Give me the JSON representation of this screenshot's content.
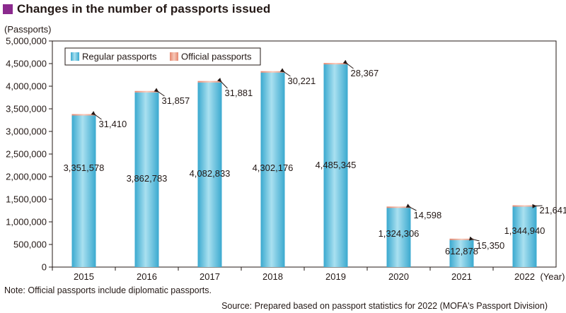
{
  "header": {
    "title": "Changes in the number of passports issued",
    "marker_color": "#8b2a8e"
  },
  "unit_label": "(Passports)",
  "note": "Note: Official passports include diplomatic passports.",
  "source": "Source: Prepared based on passport statistics for 2022 (MOFA's Passport Division)",
  "chart_data": {
    "type": "bar",
    "stacked": true,
    "categories": [
      "2015",
      "2016",
      "2017",
      "2018",
      "2019",
      "2020",
      "2021",
      "2022"
    ],
    "x_unit": "(Year)",
    "series": [
      {
        "name": "Regular passports",
        "values": [
          3351578,
          3862783,
          4082833,
          4302176,
          4485345,
          1324306,
          612878,
          1344940
        ],
        "labels": [
          "3,351,578",
          "3,862,783",
          "4,082,833",
          "4,302,176",
          "4,485,345",
          "1,324,306",
          "612,878",
          "1,344,940"
        ],
        "color": "#5bbfdc"
      },
      {
        "name": "Official passports",
        "values": [
          31410,
          31857,
          31881,
          30221,
          28367,
          14598,
          15350,
          21641
        ],
        "labels": [
          "31,410",
          "31,857",
          "31,881",
          "30,221",
          "28,367",
          "14,598",
          "15,350",
          "21,641"
        ],
        "color": "#f0a28e"
      }
    ],
    "ylabel": "(Passports)",
    "ylim": [
      0,
      5000000
    ],
    "yticks": [
      0,
      500000,
      1000000,
      1500000,
      2000000,
      2500000,
      3000000,
      3500000,
      4000000,
      4500000,
      5000000
    ],
    "ytick_labels": [
      "0",
      "500,000",
      "1,000,000",
      "1,500,000",
      "2,000,000",
      "2,500,000",
      "3,000,000",
      "3,500,000",
      "4,000,000",
      "4,500,000",
      "5,000,000"
    ],
    "grid": false,
    "legend_position": "top-left"
  }
}
